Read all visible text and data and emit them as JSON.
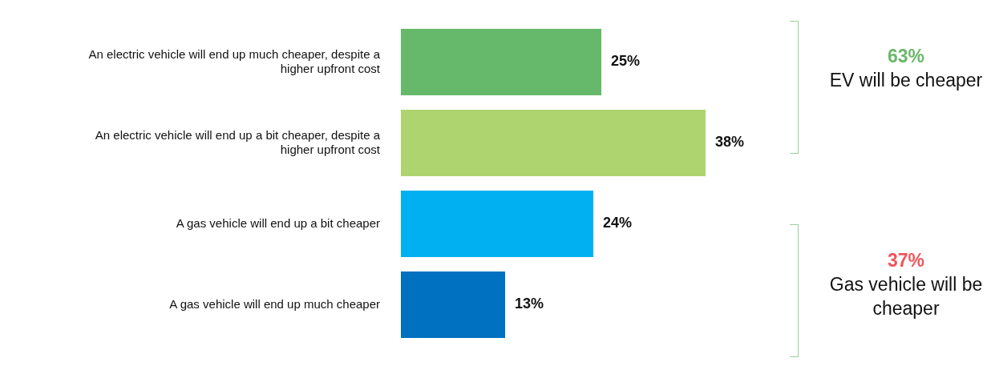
{
  "chart_data": {
    "type": "bar",
    "orientation": "horizontal",
    "categories": [
      "An electric vehicle will end up much cheaper, despite a higher upfront cost",
      "An electric vehicle will end up a bit cheaper, despite a higher upfront cost",
      "A gas vehicle will end up a bit cheaper",
      "A gas vehicle will end up much cheaper"
    ],
    "values": [
      25,
      38,
      24,
      13
    ],
    "colors": [
      "#66b96a",
      "#add46e",
      "#00b0f0",
      "#0070c0"
    ],
    "value_labels": [
      "25%",
      "38%",
      "24%",
      "13%"
    ],
    "tick_labels": "y",
    "legend": false,
    "annotations": [
      "63%",
      "EV will be cheaper",
      "37%",
      "Gas vehicle will be cheaper"
    ]
  }
}
